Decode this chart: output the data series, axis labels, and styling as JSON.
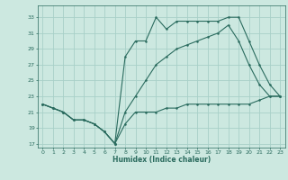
{
  "xlabel": "Humidex (Indice chaleur)",
  "bg_color": "#cce8e0",
  "grid_color": "#a8d0c8",
  "line_color": "#2a6b5e",
  "xlim": [
    -0.5,
    23.5
  ],
  "ylim": [
    16.5,
    34.5
  ],
  "xticks": [
    0,
    1,
    2,
    3,
    4,
    5,
    6,
    7,
    8,
    9,
    10,
    11,
    12,
    13,
    14,
    15,
    16,
    17,
    18,
    19,
    20,
    21,
    22,
    23
  ],
  "yticks": [
    17,
    19,
    21,
    23,
    25,
    27,
    29,
    31,
    33
  ],
  "line1_x": [
    0,
    1,
    2,
    3,
    4,
    5,
    6,
    7,
    8,
    9,
    10,
    11,
    12,
    13,
    14,
    15,
    16,
    17,
    18,
    19,
    20,
    21,
    22,
    23
  ],
  "line1_y": [
    22,
    21.5,
    21,
    20,
    20,
    19.5,
    18.5,
    17,
    19.5,
    21,
    21,
    21,
    21.5,
    21.5,
    22,
    22,
    22,
    22,
    22,
    22,
    22,
    22.5,
    23,
    23
  ],
  "line2_x": [
    0,
    1,
    2,
    3,
    4,
    5,
    6,
    7,
    8,
    9,
    10,
    11,
    12,
    13,
    14,
    15,
    16,
    17,
    18,
    19,
    20,
    21,
    22,
    23
  ],
  "line2_y": [
    22,
    21.5,
    21,
    20,
    20,
    19.5,
    18.5,
    17,
    28,
    30,
    30,
    33,
    31.5,
    32.5,
    32.5,
    32.5,
    32.5,
    32.5,
    33,
    33,
    30,
    27,
    24.5,
    23
  ],
  "line3_x": [
    0,
    1,
    2,
    3,
    4,
    5,
    6,
    7,
    8,
    9,
    10,
    11,
    12,
    13,
    14,
    15,
    16,
    17,
    18,
    19,
    20,
    21,
    22,
    23
  ],
  "line3_y": [
    22,
    21.5,
    21,
    20,
    20,
    19.5,
    18.5,
    17,
    21,
    23,
    25,
    27,
    28,
    29,
    29.5,
    30,
    30.5,
    31,
    32,
    30,
    27,
    24.5,
    23,
    23
  ]
}
